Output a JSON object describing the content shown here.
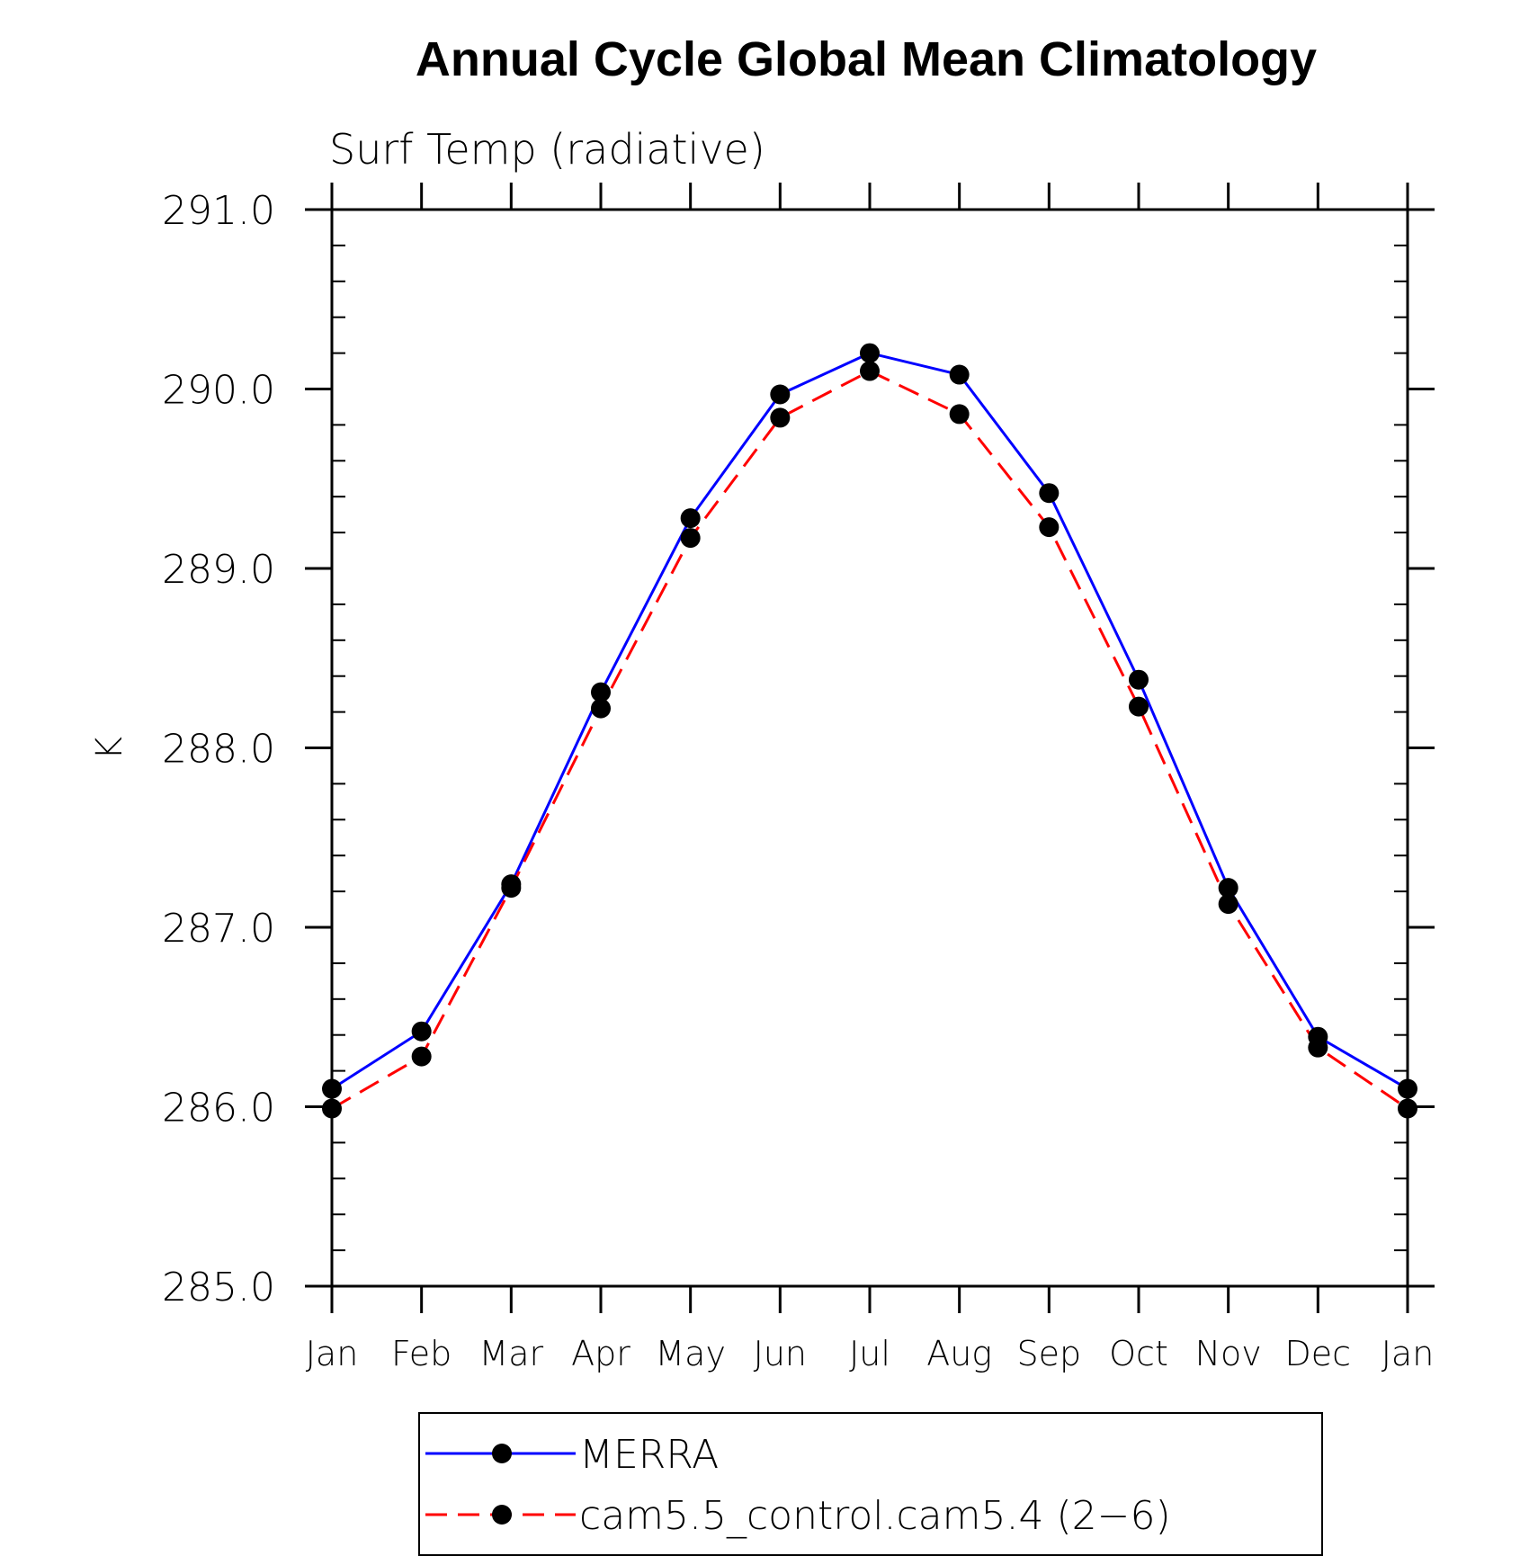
{
  "chart_data": {
    "type": "line",
    "title": "Annual Cycle Global Mean Climatology",
    "subtitle": "Surf Temp (radiative)",
    "xlabel": "",
    "ylabel": "K",
    "categories": [
      "Jan",
      "Feb",
      "Mar",
      "Apr",
      "May",
      "Jun",
      "Jul",
      "Aug",
      "Sep",
      "Oct",
      "Nov",
      "Dec",
      "Jan"
    ],
    "ylim": [
      285.0,
      291.0
    ],
    "yticks": [
      "285.0",
      "286.0",
      "287.0",
      "288.0",
      "289.0",
      "290.0",
      "291.0"
    ],
    "series": [
      {
        "name": "MERRA",
        "color": "#0000ff",
        "line_style": "solid",
        "marker": "filled-circle",
        "values": [
          286.1,
          286.42,
          287.24,
          288.31,
          289.28,
          289.97,
          290.2,
          290.08,
          289.42,
          288.38,
          287.22,
          286.39,
          286.1
        ]
      },
      {
        "name": "cam5.5_control.cam5.4 (2−6)",
        "color": "#ff0000",
        "line_style": "dashed",
        "marker": "filled-circle",
        "values": [
          285.99,
          286.28,
          287.22,
          288.22,
          289.17,
          289.84,
          290.1,
          289.86,
          289.23,
          288.23,
          287.13,
          286.33,
          285.99
        ]
      }
    ],
    "grid": false,
    "legend_position": "bottom-center",
    "marker_color": "#000000"
  }
}
